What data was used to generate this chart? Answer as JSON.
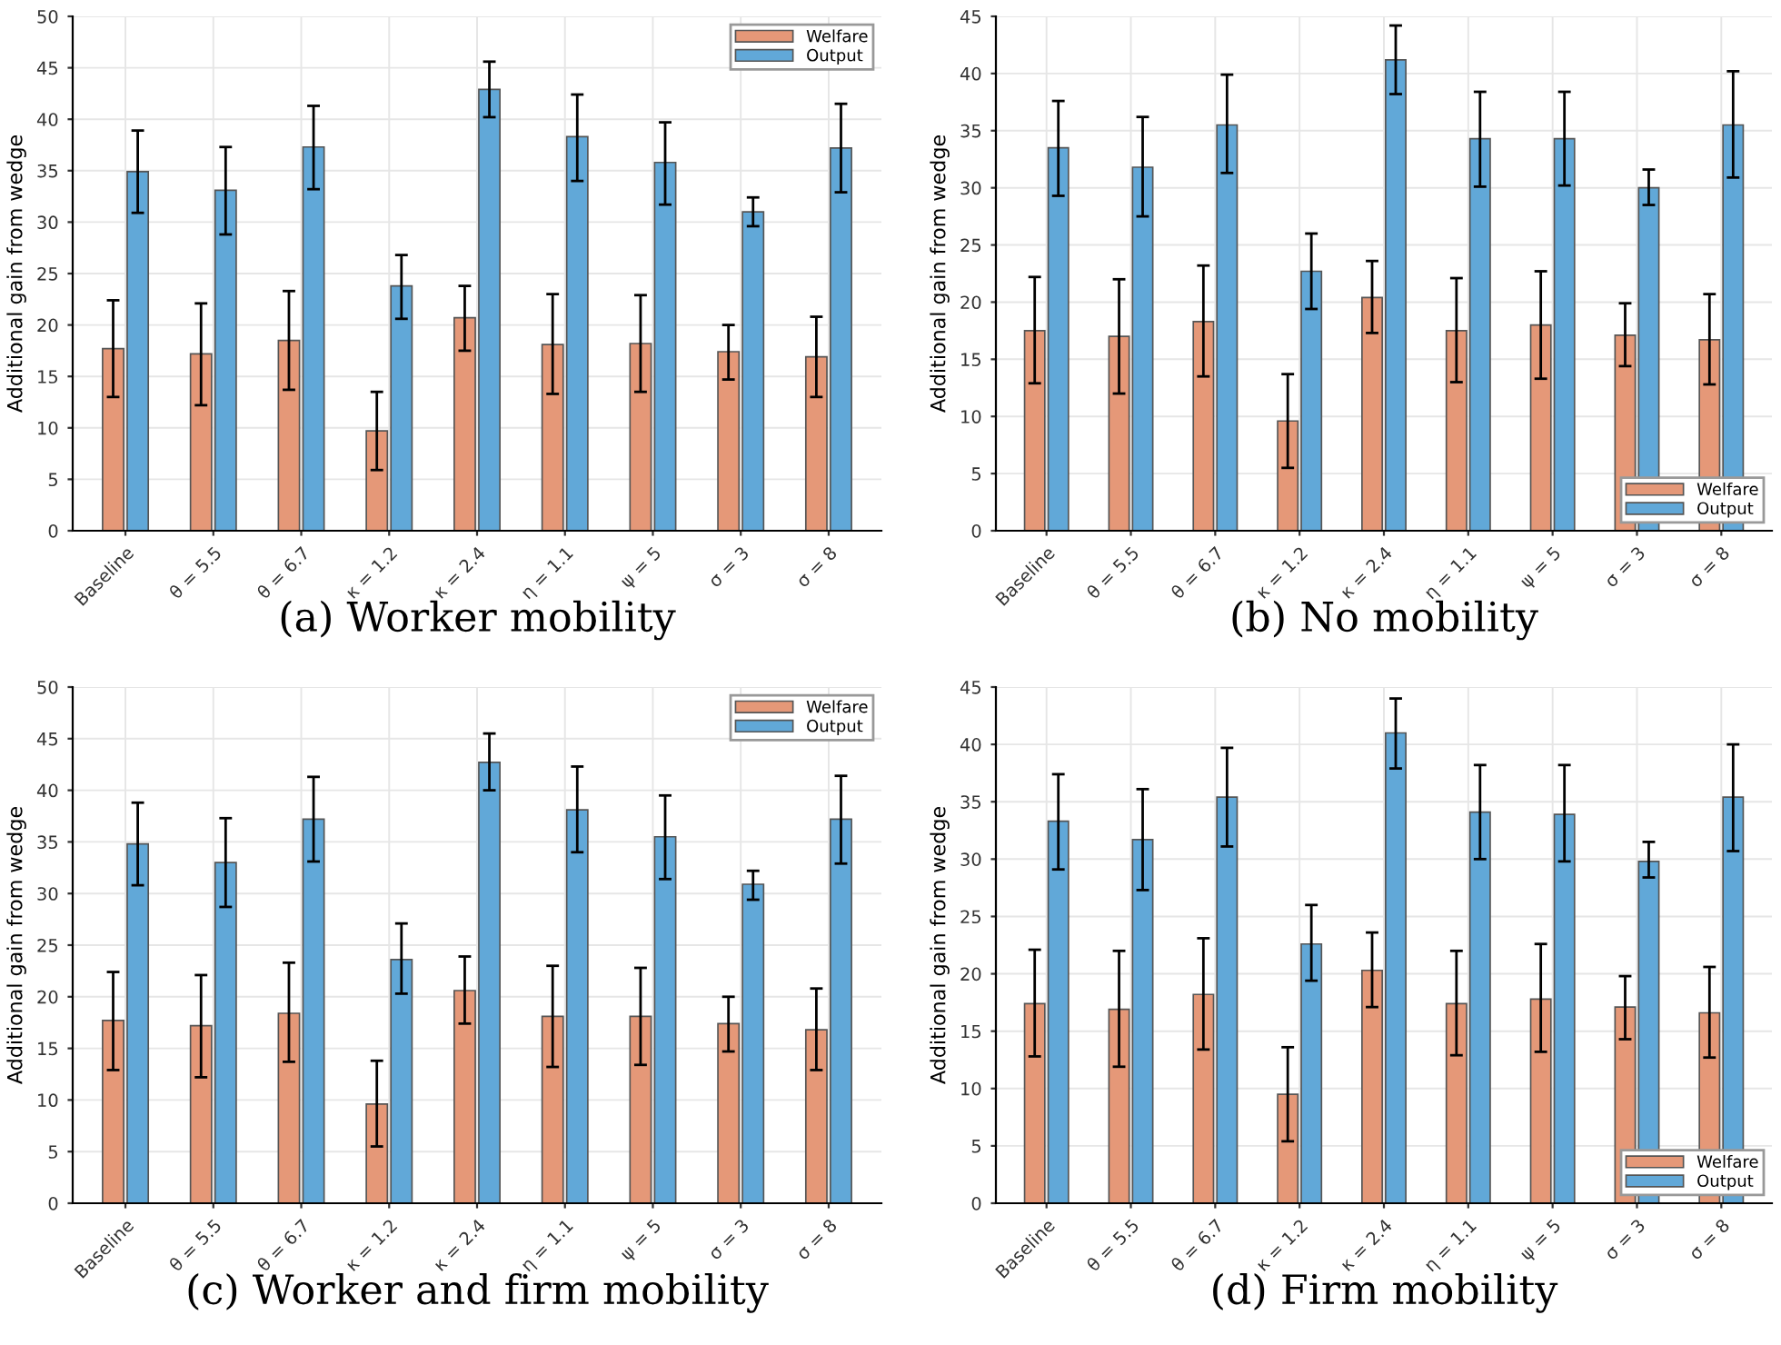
{
  "chart_data": [
    {
      "type": "bar",
      "title": "(a) Worker mobility",
      "ylabel": "Additional gain from wedge",
      "categories": [
        "Baseline",
        "θ = 5.5",
        "θ = 6.7",
        "κ = 1.2",
        "κ = 2.4",
        "η = 1.1",
        "ψ = 5",
        "σ = 3",
        "σ = 8"
      ],
      "ylim": [
        0,
        50
      ],
      "yticks": [
        0,
        5,
        10,
        15,
        20,
        25,
        30,
        35,
        40,
        45,
        50
      ],
      "grid": true,
      "legend": "top right",
      "series": [
        {
          "name": "Welfare",
          "color": "#e59878",
          "values": [
            17.7,
            17.2,
            18.5,
            9.7,
            20.7,
            18.1,
            18.2,
            17.4,
            16.9
          ],
          "errors": [
            [
              13.0,
              22.4
            ],
            [
              12.2,
              22.1
            ],
            [
              13.7,
              23.3
            ],
            [
              5.9,
              13.5
            ],
            [
              17.5,
              23.8
            ],
            [
              13.3,
              23.0
            ],
            [
              13.5,
              22.9
            ],
            [
              14.7,
              20.0
            ],
            [
              13.0,
              20.8
            ]
          ]
        },
        {
          "name": "Output",
          "color": "#61a8d8",
          "values": [
            34.9,
            33.1,
            37.3,
            23.8,
            42.9,
            38.3,
            35.8,
            31.0,
            37.2
          ],
          "errors": [
            [
              30.9,
              38.9
            ],
            [
              28.8,
              37.3
            ],
            [
              33.2,
              41.3
            ],
            [
              20.6,
              26.8
            ],
            [
              40.2,
              45.6
            ],
            [
              34.0,
              42.4
            ],
            [
              31.7,
              39.7
            ],
            [
              29.6,
              32.4
            ],
            [
              32.9,
              41.5
            ]
          ]
        }
      ]
    },
    {
      "type": "bar",
      "title": "(b) No mobility",
      "ylabel": "Additional gain from wedge",
      "categories": [
        "Baseline",
        "θ = 5.5",
        "θ = 6.7",
        "κ = 1.2",
        "κ = 2.4",
        "η = 1.1",
        "ψ = 5",
        "σ = 3",
        "σ = 8"
      ],
      "ylim": [
        0,
        45
      ],
      "yticks": [
        0,
        5,
        10,
        15,
        20,
        25,
        30,
        35,
        40,
        45
      ],
      "grid": true,
      "legend": "bottom right",
      "series": [
        {
          "name": "Welfare",
          "color": "#e59878",
          "values": [
            17.5,
            17.0,
            18.3,
            9.6,
            20.4,
            17.5,
            18.0,
            17.1,
            16.7
          ],
          "errors": [
            [
              12.9,
              22.2
            ],
            [
              12.0,
              22.0
            ],
            [
              13.5,
              23.2
            ],
            [
              5.5,
              13.7
            ],
            [
              17.3,
              23.6
            ],
            [
              13.0,
              22.1
            ],
            [
              13.3,
              22.7
            ],
            [
              14.4,
              19.9
            ],
            [
              12.8,
              20.7
            ]
          ]
        },
        {
          "name": "Output",
          "color": "#61a8d8",
          "values": [
            33.5,
            31.8,
            35.5,
            22.7,
            41.2,
            34.3,
            34.3,
            30.0,
            35.5
          ],
          "errors": [
            [
              29.3,
              37.6
            ],
            [
              27.5,
              36.2
            ],
            [
              31.3,
              39.9
            ],
            [
              19.4,
              26.0
            ],
            [
              38.2,
              44.2
            ],
            [
              30.1,
              38.4
            ],
            [
              30.2,
              38.4
            ],
            [
              28.5,
              31.6
            ],
            [
              30.9,
              40.2
            ]
          ]
        }
      ]
    },
    {
      "type": "bar",
      "title": "(c) Worker and firm mobility",
      "ylabel": "Additional gain from wedge",
      "categories": [
        "Baseline",
        "θ = 5.5",
        "θ = 6.7",
        "κ = 1.2",
        "κ = 2.4",
        "η = 1.1",
        "ψ = 5",
        "σ = 3",
        "σ = 8"
      ],
      "ylim": [
        0,
        50
      ],
      "yticks": [
        0,
        5,
        10,
        15,
        20,
        25,
        30,
        35,
        40,
        45,
        50
      ],
      "grid": true,
      "legend": "top right",
      "series": [
        {
          "name": "Welfare",
          "color": "#e59878",
          "values": [
            17.7,
            17.2,
            18.4,
            9.6,
            20.6,
            18.1,
            18.1,
            17.4,
            16.8
          ],
          "errors": [
            [
              12.9,
              22.4
            ],
            [
              12.2,
              22.1
            ],
            [
              13.7,
              23.3
            ],
            [
              5.5,
              13.8
            ],
            [
              17.4,
              23.9
            ],
            [
              13.2,
              23.0
            ],
            [
              13.4,
              22.8
            ],
            [
              14.7,
              20.0
            ],
            [
              12.9,
              20.8
            ]
          ]
        },
        {
          "name": "Output",
          "color": "#61a8d8",
          "values": [
            34.8,
            33.0,
            37.2,
            23.6,
            42.7,
            38.1,
            35.5,
            30.9,
            37.2
          ],
          "errors": [
            [
              30.8,
              38.8
            ],
            [
              28.7,
              37.3
            ],
            [
              33.1,
              41.3
            ],
            [
              20.3,
              27.1
            ],
            [
              40.0,
              45.5
            ],
            [
              34.0,
              42.3
            ],
            [
              31.4,
              39.5
            ],
            [
              29.4,
              32.2
            ],
            [
              32.9,
              41.4
            ]
          ]
        }
      ]
    },
    {
      "type": "bar",
      "title": "(d) Firm mobility",
      "ylabel": "Additional gain from wedge",
      "categories": [
        "Baseline",
        "θ = 5.5",
        "θ = 6.7",
        "κ = 1.2",
        "κ = 2.4",
        "η = 1.1",
        "ψ = 5",
        "σ = 3",
        "σ = 8"
      ],
      "ylim": [
        0,
        45
      ],
      "yticks": [
        0,
        5,
        10,
        15,
        20,
        25,
        30,
        35,
        40,
        45
      ],
      "grid": true,
      "legend": "bottom right",
      "series": [
        {
          "name": "Welfare",
          "color": "#e59878",
          "values": [
            17.4,
            16.9,
            18.2,
            9.5,
            20.3,
            17.4,
            17.8,
            17.1,
            16.6
          ],
          "errors": [
            [
              12.8,
              22.1
            ],
            [
              11.9,
              22.0
            ],
            [
              13.4,
              23.1
            ],
            [
              5.4,
              13.6
            ],
            [
              17.1,
              23.6
            ],
            [
              12.9,
              22.0
            ],
            [
              13.2,
              22.6
            ],
            [
              14.3,
              19.8
            ],
            [
              12.7,
              20.6
            ]
          ]
        },
        {
          "name": "Output",
          "color": "#61a8d8",
          "values": [
            33.3,
            31.7,
            35.4,
            22.6,
            41.0,
            34.1,
            33.9,
            29.8,
            35.4
          ],
          "errors": [
            [
              29.1,
              37.4
            ],
            [
              27.3,
              36.1
            ],
            [
              31.1,
              39.7
            ],
            [
              19.4,
              26.0
            ],
            [
              37.9,
              44.0
            ],
            [
              30.0,
              38.2
            ],
            [
              29.8,
              38.2
            ],
            [
              28.4,
              31.5
            ],
            [
              30.7,
              40.0
            ]
          ]
        }
      ]
    }
  ]
}
